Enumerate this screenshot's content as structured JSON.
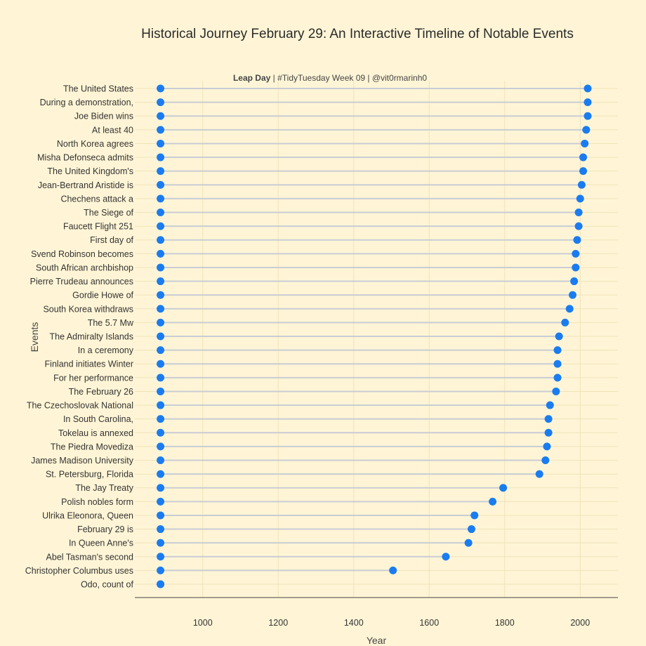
{
  "chart_data": {
    "type": "dumbbell",
    "title": "Historical Journey February 29: An Interactive Timeline of Notable Events",
    "subtitle_bold": "Leap Day",
    "subtitle_rest": " | #TidyTuesday Week 09 | @vit0rmarinh0",
    "xlabel": "Year",
    "ylabel": "Events",
    "xlim": [
      820,
      2100
    ],
    "xticks": [
      1000,
      1200,
      1400,
      1600,
      1800,
      2000
    ],
    "start_year": 888,
    "grid": true,
    "colors": {
      "background": "#fff5d6",
      "point": "#1a7cf0",
      "connector": "#c8ccd4",
      "grid": "#f0e2b8",
      "axis": "#444444"
    },
    "events": [
      {
        "label": "The United States",
        "year": 2020
      },
      {
        "label": "During a demonstration,",
        "year": 2020
      },
      {
        "label": "Joe Biden wins",
        "year": 2020
      },
      {
        "label": "At least 40",
        "year": 2016
      },
      {
        "label": "North Korea agrees",
        "year": 2012
      },
      {
        "label": "Misha Defonseca admits",
        "year": 2008
      },
      {
        "label": "The United Kingdom's",
        "year": 2008
      },
      {
        "label": "Jean-Bertrand Aristide is",
        "year": 2004
      },
      {
        "label": "Chechens attack a",
        "year": 2000
      },
      {
        "label": "The Siege of",
        "year": 1996
      },
      {
        "label": "Faucett Flight 251",
        "year": 1996
      },
      {
        "label": "First day of",
        "year": 1992
      },
      {
        "label": "Svend Robinson becomes",
        "year": 1988
      },
      {
        "label": "South African archbishop",
        "year": 1988
      },
      {
        "label": "Pierre Trudeau announces",
        "year": 1984
      },
      {
        "label": "Gordie Howe of",
        "year": 1980
      },
      {
        "label": "South Korea withdraws",
        "year": 1972
      },
      {
        "label": "The 5.7 Mw",
        "year": 1960
      },
      {
        "label": "The Admiralty Islands",
        "year": 1944
      },
      {
        "label": "In a ceremony",
        "year": 1940
      },
      {
        "label": "Finland initiates Winter",
        "year": 1940
      },
      {
        "label": "For her performance",
        "year": 1940
      },
      {
        "label": "The February 26",
        "year": 1936
      },
      {
        "label": "The Czechoslovak National",
        "year": 1920
      },
      {
        "label": "In South Carolina,",
        "year": 1916
      },
      {
        "label": "Tokelau is annexed",
        "year": 1916
      },
      {
        "label": "The Piedra Movediza",
        "year": 1912
      },
      {
        "label": "James Madison University",
        "year": 1908
      },
      {
        "label": "St. Petersburg, Florida",
        "year": 1892
      },
      {
        "label": "The Jay Treaty",
        "year": 1796
      },
      {
        "label": "Polish nobles form",
        "year": 1768
      },
      {
        "label": "Ulrika Eleonora, Queen",
        "year": 1720
      },
      {
        "label": "February 29 is",
        "year": 1712
      },
      {
        "label": "In Queen Anne's",
        "year": 1704
      },
      {
        "label": "Abel Tasman's second",
        "year": 1644
      },
      {
        "label": "Christopher Columbus uses",
        "year": 1504
      },
      {
        "label": "Odo, count of",
        "year": 888
      }
    ]
  }
}
